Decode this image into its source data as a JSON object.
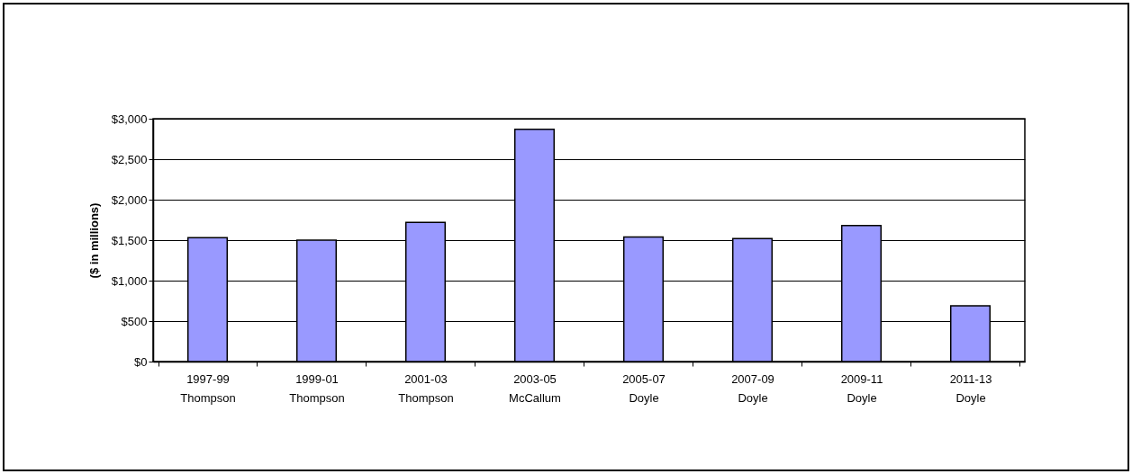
{
  "chart_data": {
    "type": "bar",
    "ylabel": "($ in millions)",
    "categories": [
      "1997-99\nThompson",
      "1999-01\nThompson",
      "2001-03\nThompson",
      "2003-05\nMcCallum",
      "2005-07\nDoyle",
      "2007-09\nDoyle",
      "2009-11\nDoyle",
      "2011-13\nDoyle"
    ],
    "values": [
      1530,
      1500,
      1720,
      2870,
      1540,
      1520,
      1680,
      690
    ],
    "color": "#9999ff",
    "ylim": [
      0,
      3000
    ],
    "yticks": [
      {
        "value": 0,
        "label": "$0"
      },
      {
        "value": 500,
        "label": "$500"
      },
      {
        "value": 1000,
        "label": "$1,000"
      },
      {
        "value": 1500,
        "label": "$1,500"
      },
      {
        "value": 2000,
        "label": "$2,000"
      },
      {
        "value": 2500,
        "label": "$2,500"
      },
      {
        "value": 3000,
        "label": "$3,000"
      }
    ],
    "grid": "y"
  }
}
